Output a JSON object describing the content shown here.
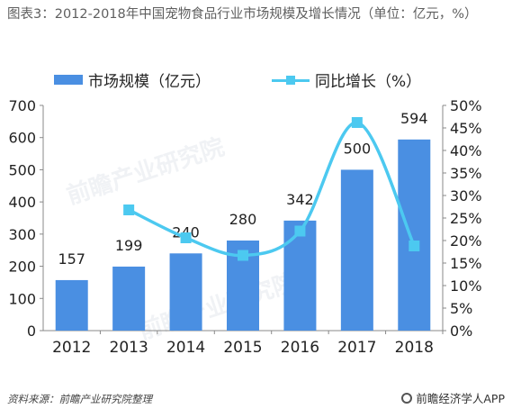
{
  "header": {
    "title": "图表3：2012-2018年中国宠物食品行业市场规模及增长情况（单位：亿元，%）"
  },
  "watermark": "前瞻产业研究院",
  "footer": {
    "source": "资料来源：前瞻产业研究院整理",
    "credit": "前瞻经济学人APP"
  },
  "colors": {
    "bar": "#4a8fe2",
    "line": "#4cc9f0"
  },
  "chart_data": {
    "type": "bar",
    "categories": [
      "2012",
      "2013",
      "2014",
      "2015",
      "2016",
      "2017",
      "2018"
    ],
    "series": [
      {
        "name": "市场规模（亿元）",
        "type": "bar",
        "axis": "left",
        "values": [
          157,
          199,
          240,
          280,
          342,
          500,
          594
        ]
      },
      {
        "name": "同比增长（%）",
        "type": "line",
        "axis": "right",
        "values": [
          null,
          26.8,
          20.6,
          16.7,
          22.1,
          46.2,
          18.8
        ]
      }
    ],
    "data_labels": [
      "157",
      "199",
      "240",
      "280",
      "342",
      "500",
      "594"
    ],
    "y_left": {
      "ylim": [
        0,
        700
      ],
      "ticks": [
        "0",
        "100",
        "200",
        "300",
        "400",
        "500",
        "600",
        "700"
      ]
    },
    "y_right": {
      "ylim": [
        0,
        50
      ],
      "ticks": [
        "0%",
        "5%",
        "10%",
        "15%",
        "20%",
        "25%",
        "30%",
        "35%",
        "40%",
        "45%",
        "50%"
      ]
    },
    "legend_position": "top",
    "grid": false
  }
}
